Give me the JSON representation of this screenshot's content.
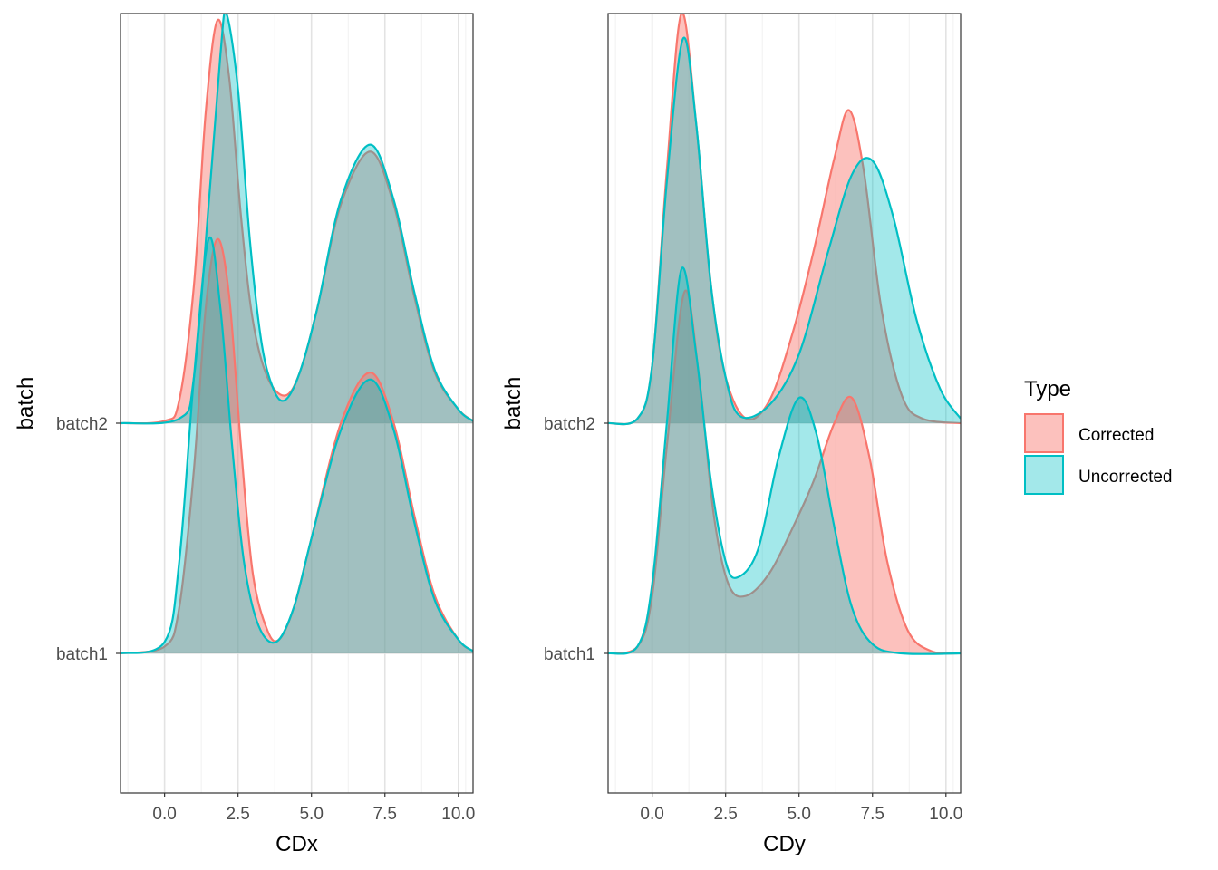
{
  "chart_data": [
    {
      "type": "area",
      "subtype": "ridgeline-density",
      "xlabel": "CDx",
      "ylabel": "batch",
      "xlim": [
        -1.5,
        10.5
      ],
      "xticks": [
        0,
        2.5,
        5,
        7.5,
        10
      ],
      "xtick_labels": [
        "0.0",
        "2.5",
        "5.0",
        "7.5",
        "10.0"
      ],
      "categories": [
        "batch1",
        "batch2"
      ],
      "grid": true,
      "series": [
        {
          "name": "Corrected",
          "batch": "batch2",
          "points": [
            [
              -1.5,
              0
            ],
            [
              0,
              0.01
            ],
            [
              0.5,
              0.1
            ],
            [
              1.0,
              0.6
            ],
            [
              1.4,
              1.35
            ],
            [
              1.8,
              1.75
            ],
            [
              2.2,
              1.5
            ],
            [
              2.6,
              0.9
            ],
            [
              3.0,
              0.45
            ],
            [
              3.5,
              0.2
            ],
            [
              4.1,
              0.12
            ],
            [
              4.6,
              0.22
            ],
            [
              5.2,
              0.5
            ],
            [
              6.0,
              0.95
            ],
            [
              7.0,
              1.18
            ],
            [
              7.8,
              0.95
            ],
            [
              8.5,
              0.55
            ],
            [
              9.2,
              0.22
            ],
            [
              10,
              0.06
            ],
            [
              10.5,
              0.01
            ]
          ]
        },
        {
          "name": "Uncorrected",
          "batch": "batch2",
          "points": [
            [
              -1.5,
              0
            ],
            [
              0.5,
              0.02
            ],
            [
              1.0,
              0.2
            ],
            [
              1.5,
              0.95
            ],
            [
              1.9,
              1.6
            ],
            [
              2.1,
              1.78
            ],
            [
              2.5,
              1.45
            ],
            [
              2.9,
              0.8
            ],
            [
              3.3,
              0.35
            ],
            [
              3.7,
              0.15
            ],
            [
              4.1,
              0.1
            ],
            [
              4.6,
              0.22
            ],
            [
              5.2,
              0.5
            ],
            [
              6.0,
              0.97
            ],
            [
              7.0,
              1.21
            ],
            [
              7.8,
              0.97
            ],
            [
              8.5,
              0.57
            ],
            [
              9.2,
              0.23
            ],
            [
              10,
              0.06
            ],
            [
              10.5,
              0.01
            ]
          ]
        },
        {
          "name": "Corrected",
          "batch": "batch1",
          "points": [
            [
              -1.5,
              0
            ],
            [
              0,
              0.03
            ],
            [
              0.5,
              0.2
            ],
            [
              1.0,
              0.8
            ],
            [
              1.4,
              1.5
            ],
            [
              1.8,
              1.8
            ],
            [
              2.2,
              1.55
            ],
            [
              2.6,
              0.9
            ],
            [
              3.0,
              0.35
            ],
            [
              3.5,
              0.1
            ],
            [
              3.9,
              0.06
            ],
            [
              4.4,
              0.2
            ],
            [
              5.0,
              0.5
            ],
            [
              6.0,
              1.0
            ],
            [
              7.0,
              1.22
            ],
            [
              7.8,
              1.0
            ],
            [
              8.5,
              0.6
            ],
            [
              9.2,
              0.25
            ],
            [
              10,
              0.06
            ],
            [
              10.5,
              0.01
            ]
          ]
        },
        {
          "name": "Uncorrected",
          "batch": "batch1",
          "points": [
            [
              -1.5,
              0
            ],
            [
              0,
              0.05
            ],
            [
              0.5,
              0.4
            ],
            [
              1.0,
              1.2
            ],
            [
              1.5,
              1.8
            ],
            [
              1.9,
              1.5
            ],
            [
              2.3,
              0.9
            ],
            [
              2.7,
              0.4
            ],
            [
              3.2,
              0.12
            ],
            [
              3.8,
              0.05
            ],
            [
              4.4,
              0.2
            ],
            [
              5.0,
              0.5
            ],
            [
              6.0,
              0.97
            ],
            [
              7.0,
              1.19
            ],
            [
              7.8,
              0.97
            ],
            [
              8.5,
              0.57
            ],
            [
              9.2,
              0.23
            ],
            [
              10,
              0.06
            ],
            [
              10.5,
              0.01
            ]
          ]
        }
      ]
    },
    {
      "type": "area",
      "subtype": "ridgeline-density",
      "xlabel": "CDy",
      "ylabel": "batch",
      "xlim": [
        -1.5,
        10.5
      ],
      "xticks": [
        0,
        2.5,
        5,
        7.5,
        10
      ],
      "xtick_labels": [
        "0.0",
        "2.5",
        "5.0",
        "7.5",
        "10.0"
      ],
      "categories": [
        "batch1",
        "batch2"
      ],
      "grid": true,
      "series": [
        {
          "name": "Corrected",
          "batch": "batch2",
          "points": [
            [
              -1.5,
              0
            ],
            [
              -0.5,
              0.02
            ],
            [
              0,
              0.25
            ],
            [
              0.5,
              1.1
            ],
            [
              1.0,
              1.78
            ],
            [
              1.5,
              1.3
            ],
            [
              2.0,
              0.6
            ],
            [
              2.5,
              0.2
            ],
            [
              3.2,
              0.02
            ],
            [
              4.0,
              0.1
            ],
            [
              4.8,
              0.4
            ],
            [
              5.5,
              0.75
            ],
            [
              6.2,
              1.15
            ],
            [
              6.7,
              1.36
            ],
            [
              7.2,
              1.1
            ],
            [
              7.8,
              0.5
            ],
            [
              8.5,
              0.12
            ],
            [
              9.2,
              0.02
            ],
            [
              10.5,
              0
            ]
          ]
        },
        {
          "name": "Uncorrected",
          "batch": "batch2",
          "points": [
            [
              -1.5,
              0
            ],
            [
              -0.5,
              0.02
            ],
            [
              0,
              0.25
            ],
            [
              0.5,
              1.05
            ],
            [
              1.05,
              1.67
            ],
            [
              1.5,
              1.3
            ],
            [
              2.0,
              0.6
            ],
            [
              2.5,
              0.2
            ],
            [
              3.0,
              0.03
            ],
            [
              4.0,
              0.08
            ],
            [
              5.0,
              0.3
            ],
            [
              6.0,
              0.75
            ],
            [
              6.8,
              1.08
            ],
            [
              7.5,
              1.14
            ],
            [
              8.2,
              0.9
            ],
            [
              9.0,
              0.45
            ],
            [
              9.8,
              0.15
            ],
            [
              10.5,
              0.02
            ]
          ]
        },
        {
          "name": "Corrected",
          "batch": "batch1",
          "points": [
            [
              -1.5,
              0
            ],
            [
              -0.5,
              0.03
            ],
            [
              0,
              0.25
            ],
            [
              0.5,
              0.9
            ],
            [
              1.1,
              1.57
            ],
            [
              1.6,
              1.2
            ],
            [
              2.1,
              0.6
            ],
            [
              2.6,
              0.3
            ],
            [
              3.2,
              0.25
            ],
            [
              4.0,
              0.35
            ],
            [
              4.8,
              0.55
            ],
            [
              5.5,
              0.75
            ],
            [
              6.2,
              1.0
            ],
            [
              6.8,
              1.11
            ],
            [
              7.4,
              0.85
            ],
            [
              8.0,
              0.4
            ],
            [
              8.7,
              0.1
            ],
            [
              9.5,
              0.01
            ],
            [
              10.5,
              0
            ]
          ]
        },
        {
          "name": "Uncorrected",
          "batch": "batch1",
          "points": [
            [
              -1.5,
              0
            ],
            [
              -0.5,
              0.03
            ],
            [
              0,
              0.3
            ],
            [
              0.5,
              1.0
            ],
            [
              1.0,
              1.67
            ],
            [
              1.5,
              1.3
            ],
            [
              2.0,
              0.75
            ],
            [
              2.5,
              0.4
            ],
            [
              2.9,
              0.33
            ],
            [
              3.6,
              0.45
            ],
            [
              4.3,
              0.85
            ],
            [
              5.0,
              1.11
            ],
            [
              5.6,
              0.95
            ],
            [
              6.2,
              0.55
            ],
            [
              6.8,
              0.2
            ],
            [
              7.5,
              0.04
            ],
            [
              8.5,
              0
            ],
            [
              10.5,
              0
            ]
          ]
        }
      ]
    }
  ],
  "legend": {
    "title": "Type",
    "placement": "right",
    "items": [
      {
        "label": "Corrected",
        "color": "#F8766D"
      },
      {
        "label": "Uncorrected",
        "color": "#00BFC4"
      }
    ]
  }
}
